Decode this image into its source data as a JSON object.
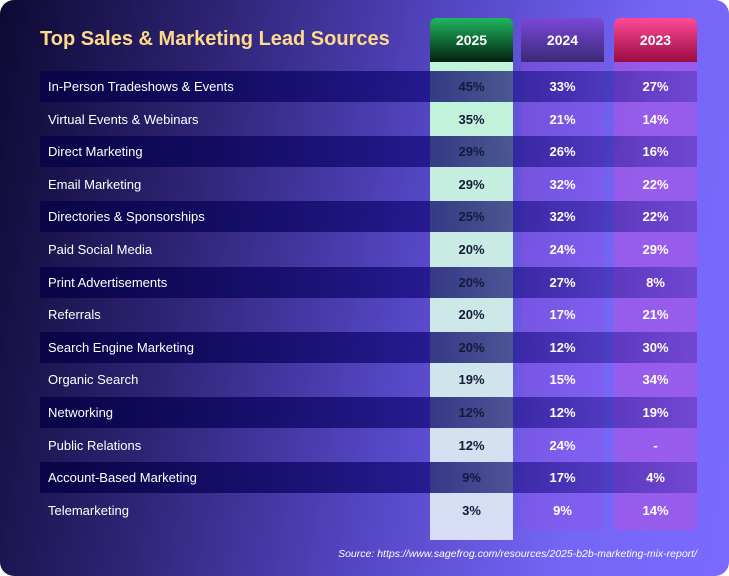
{
  "title": "Top Sales & Marketing Lead Sources",
  "columns": [
    "2025",
    "2024",
    "2023"
  ],
  "rows": [
    {
      "label": "In-Person Tradeshows & Events",
      "v": [
        "45%",
        "33%",
        "27%"
      ]
    },
    {
      "label": "Virtual Events & Webinars",
      "v": [
        "35%",
        "21%",
        "14%"
      ]
    },
    {
      "label": "Direct Marketing",
      "v": [
        "29%",
        "26%",
        "16%"
      ]
    },
    {
      "label": "Email Marketing",
      "v": [
        "29%",
        "32%",
        "22%"
      ]
    },
    {
      "label": "Directories & Sponsorships",
      "v": [
        "25%",
        "32%",
        "22%"
      ]
    },
    {
      "label": "Paid Social Media",
      "v": [
        "20%",
        "24%",
        "29%"
      ]
    },
    {
      "label": "Print Advertisements",
      "v": [
        "20%",
        "27%",
        "8%"
      ]
    },
    {
      "label": "Referrals",
      "v": [
        "20%",
        "17%",
        "21%"
      ]
    },
    {
      "label": "Search Engine Marketing",
      "v": [
        "20%",
        "12%",
        "30%"
      ]
    },
    {
      "label": "Organic Search",
      "v": [
        "19%",
        "15%",
        "34%"
      ]
    },
    {
      "label": "Networking",
      "v": [
        "12%",
        "12%",
        "19%"
      ]
    },
    {
      "label": "Public Relations",
      "v": [
        "12%",
        "24%",
        "-"
      ]
    },
    {
      "label": "Account-Based Marketing",
      "v": [
        "9%",
        "17%",
        "4%"
      ]
    },
    {
      "label": "Telemarketing",
      "v": [
        "3%",
        "9%",
        "14%"
      ]
    }
  ],
  "source": "Source: https://www.sagefrog.com/resources/2025-b2b-marketing-mix-report/"
}
